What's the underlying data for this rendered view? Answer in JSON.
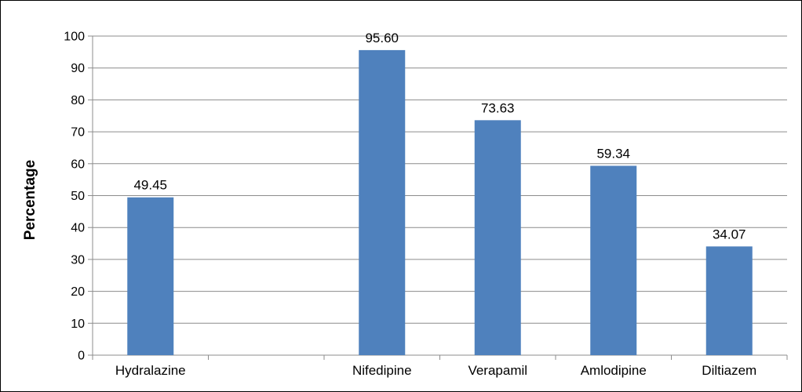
{
  "chart_data": {
    "type": "bar",
    "categories": [
      "Hydralazine",
      "",
      "Nifedipine",
      "Verapamil",
      "Amlodipine",
      "Diltiazem"
    ],
    "values": [
      49.45,
      null,
      95.6,
      73.63,
      59.34,
      34.07
    ],
    "data_labels": [
      "49.45",
      "",
      "95.60",
      "73.63",
      "59.34",
      "34.07"
    ],
    "title": "",
    "xlabel": "",
    "ylabel": "Percentage",
    "ylim": [
      0,
      100
    ],
    "yticks": [
      0,
      10,
      20,
      30,
      40,
      50,
      60,
      70,
      80,
      90,
      100
    ],
    "grid": true,
    "legend": "none",
    "bar_color": "#4F81BD"
  }
}
